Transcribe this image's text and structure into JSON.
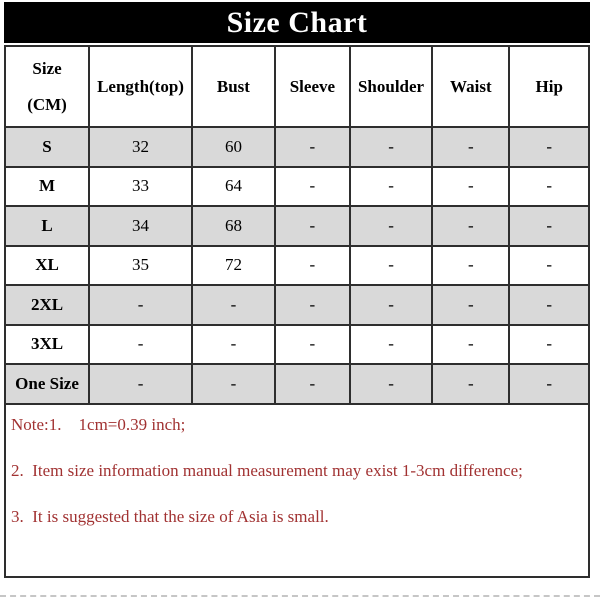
{
  "chart_data": {
    "type": "table",
    "title": "Size Chart",
    "columns": [
      "Size\n(CM)",
      "Length(top)",
      "Bust",
      "Sleeve",
      "Shoulder",
      "Waist",
      "Hip"
    ],
    "rows": [
      [
        "S",
        "32",
        "60",
        "-",
        "-",
        "-",
        "-"
      ],
      [
        "M",
        "33",
        "64",
        "-",
        "-",
        "-",
        "-"
      ],
      [
        "L",
        "34",
        "68",
        "-",
        "-",
        "-",
        "-"
      ],
      [
        "XL",
        "35",
        "72",
        "-",
        "-",
        "-",
        "-"
      ],
      [
        "2XL",
        "-",
        "-",
        "-",
        "-",
        "-",
        "-"
      ],
      [
        "3XL",
        "-",
        "-",
        "-",
        "-",
        "-",
        "-"
      ],
      [
        "One Size",
        "-",
        "-",
        "-",
        "-",
        "-",
        "-"
      ]
    ],
    "notes": [
      "Note:1.    1cm=0.39 inch;",
      "2.  Item size information manual measurement may exist 1-3cm difference;",
      "3.  It is suggested that the size of Asia is small."
    ],
    "layout_hints": {
      "shaded_rows": [
        "S",
        "L",
        "2XL",
        "One Size"
      ]
    }
  },
  "colors": {
    "title_bg": "#000000",
    "title_text": "#ffffff",
    "row_shade": "#d9d9d9",
    "border": "#2e2e2e",
    "note_text": "#a13232"
  }
}
